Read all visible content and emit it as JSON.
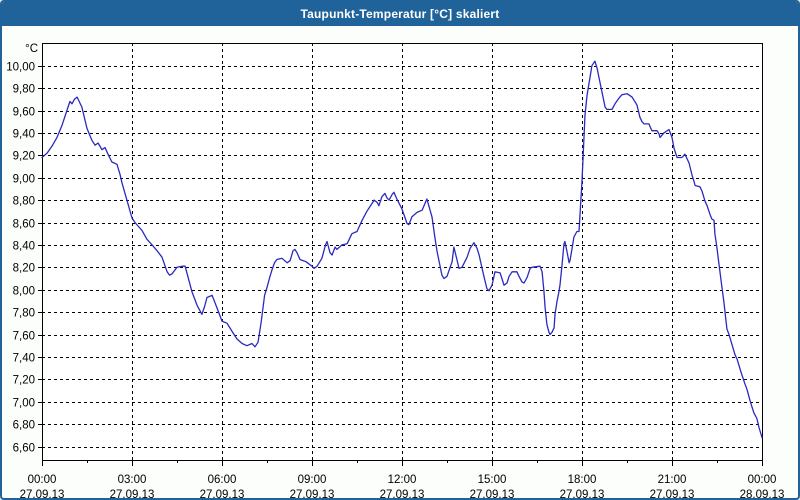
{
  "window": {
    "title": "Taupunkt-Temperatur [°C] skaliert"
  },
  "colors": {
    "titlebar_bg": "#20639b",
    "titlebar_text": "#ffffff",
    "frame_border": "#20639b",
    "page_bg": "#fcfefc",
    "plot_bg": "#fefffe",
    "grid": "#000000",
    "axis": "#000000",
    "tick_label": "#000000",
    "series_line": "#2a2ac0"
  },
  "chart_data": {
    "type": "line",
    "title": "Taupunkt-Temperatur [°C] skaliert",
    "unit_label": "°C",
    "grid": "dashed",
    "legend_position": "none",
    "y_axis": {
      "min": 6.49,
      "max": 10.2,
      "gridline_min": 6.6,
      "gridline_max": 10.0,
      "step": 0.2
    },
    "y_ticks": [
      {
        "value": 10.0,
        "label": "10,00"
      },
      {
        "value": 9.8,
        "label": "9,80"
      },
      {
        "value": 9.6,
        "label": "9,60"
      },
      {
        "value": 9.4,
        "label": "9,40"
      },
      {
        "value": 9.2,
        "label": "9,20"
      },
      {
        "value": 9.0,
        "label": "9,00"
      },
      {
        "value": 8.8,
        "label": "8,80"
      },
      {
        "value": 8.6,
        "label": "8,60"
      },
      {
        "value": 8.4,
        "label": "8,40"
      },
      {
        "value": 8.2,
        "label": "8,20"
      },
      {
        "value": 8.0,
        "label": "8,00"
      },
      {
        "value": 7.8,
        "label": "7,80"
      },
      {
        "value": 7.6,
        "label": "7,60"
      },
      {
        "value": 7.4,
        "label": "7,40"
      },
      {
        "value": 7.2,
        "label": "7,20"
      },
      {
        "value": 7.0,
        "label": "7,00"
      },
      {
        "value": 6.8,
        "label": "6,80"
      },
      {
        "value": 6.6,
        "label": "6,60"
      }
    ],
    "x_axis": {
      "min_hours": 0,
      "max_hours": 24,
      "major_step_hours": 3,
      "minor_step_hours": 1.5
    },
    "x_ticks": [
      {
        "hours": 0,
        "time": "00:00",
        "date": "27.09.13"
      },
      {
        "hours": 3,
        "time": "03:00",
        "date": "27.09.13"
      },
      {
        "hours": 6,
        "time": "06:00",
        "date": "27.09.13"
      },
      {
        "hours": 9,
        "time": "09:00",
        "date": "27.09.13"
      },
      {
        "hours": 12,
        "time": "12:00",
        "date": "27.09.13"
      },
      {
        "hours": 15,
        "time": "15:00",
        "date": "27.09.13"
      },
      {
        "hours": 18,
        "time": "18:00",
        "date": "27.09.13"
      },
      {
        "hours": 21,
        "time": "21:00",
        "date": "27.09.13"
      },
      {
        "hours": 24,
        "time": "00:00",
        "date": "28.09.13"
      }
    ],
    "series": [
      {
        "name": "Taupunkt-Temperatur",
        "color": "#2a2ac0",
        "points": [
          [
            0.0,
            9.18
          ],
          [
            0.17,
            9.22
          ],
          [
            0.33,
            9.28
          ],
          [
            0.5,
            9.36
          ],
          [
            0.67,
            9.47
          ],
          [
            0.83,
            9.6
          ],
          [
            0.93,
            9.68
          ],
          [
            1.0,
            9.66
          ],
          [
            1.08,
            9.7
          ],
          [
            1.17,
            9.72
          ],
          [
            1.33,
            9.63
          ],
          [
            1.5,
            9.44
          ],
          [
            1.67,
            9.33
          ],
          [
            1.77,
            9.29
          ],
          [
            1.87,
            9.31
          ],
          [
            2.0,
            9.25
          ],
          [
            2.1,
            9.27
          ],
          [
            2.2,
            9.21
          ],
          [
            2.33,
            9.14
          ],
          [
            2.5,
            9.12
          ],
          [
            2.6,
            9.03
          ],
          [
            2.67,
            8.95
          ],
          [
            2.83,
            8.8
          ],
          [
            3.0,
            8.64
          ],
          [
            3.1,
            8.6
          ],
          [
            3.23,
            8.56
          ],
          [
            3.33,
            8.53
          ],
          [
            3.5,
            8.45
          ],
          [
            3.67,
            8.4
          ],
          [
            3.83,
            8.35
          ],
          [
            4.0,
            8.29
          ],
          [
            4.17,
            8.16
          ],
          [
            4.25,
            8.13
          ],
          [
            4.33,
            8.14
          ],
          [
            4.5,
            8.2
          ],
          [
            4.67,
            8.21
          ],
          [
            4.77,
            8.21
          ],
          [
            4.9,
            8.08
          ],
          [
            5.0,
            7.98
          ],
          [
            5.17,
            7.86
          ],
          [
            5.33,
            7.78
          ],
          [
            5.42,
            7.85
          ],
          [
            5.5,
            7.93
          ],
          [
            5.67,
            7.95
          ],
          [
            5.83,
            7.84
          ],
          [
            6.0,
            7.72
          ],
          [
            6.17,
            7.7
          ],
          [
            6.33,
            7.63
          ],
          [
            6.5,
            7.56
          ],
          [
            6.67,
            7.52
          ],
          [
            6.83,
            7.5
          ],
          [
            7.0,
            7.52
          ],
          [
            7.1,
            7.49
          ],
          [
            7.2,
            7.53
          ],
          [
            7.3,
            7.7
          ],
          [
            7.42,
            7.95
          ],
          [
            7.5,
            8.02
          ],
          [
            7.6,
            8.12
          ],
          [
            7.67,
            8.18
          ],
          [
            7.75,
            8.24
          ],
          [
            7.83,
            8.27
          ],
          [
            8.0,
            8.28
          ],
          [
            8.17,
            8.24
          ],
          [
            8.27,
            8.26
          ],
          [
            8.37,
            8.35
          ],
          [
            8.43,
            8.36
          ],
          [
            8.5,
            8.33
          ],
          [
            8.6,
            8.27
          ],
          [
            8.7,
            8.26
          ],
          [
            8.8,
            8.25
          ],
          [
            9.0,
            8.21
          ],
          [
            9.07,
            8.19
          ],
          [
            9.17,
            8.21
          ],
          [
            9.33,
            8.28
          ],
          [
            9.45,
            8.4
          ],
          [
            9.5,
            8.43
          ],
          [
            9.6,
            8.33
          ],
          [
            9.67,
            8.31
          ],
          [
            9.77,
            8.38
          ],
          [
            9.83,
            8.36
          ],
          [
            10.0,
            8.4
          ],
          [
            10.17,
            8.41
          ],
          [
            10.33,
            8.5
          ],
          [
            10.5,
            8.52
          ],
          [
            10.67,
            8.62
          ],
          [
            10.83,
            8.7
          ],
          [
            11.0,
            8.77
          ],
          [
            11.07,
            8.8
          ],
          [
            11.17,
            8.78
          ],
          [
            11.23,
            8.75
          ],
          [
            11.33,
            8.83
          ],
          [
            11.43,
            8.86
          ],
          [
            11.5,
            8.82
          ],
          [
            11.57,
            8.8
          ],
          [
            11.67,
            8.85
          ],
          [
            11.73,
            8.87
          ],
          [
            11.83,
            8.81
          ],
          [
            12.0,
            8.72
          ],
          [
            12.17,
            8.59
          ],
          [
            12.23,
            8.58
          ],
          [
            12.33,
            8.65
          ],
          [
            12.5,
            8.69
          ],
          [
            12.67,
            8.71
          ],
          [
            12.83,
            8.81
          ],
          [
            13.0,
            8.65
          ],
          [
            13.1,
            8.46
          ],
          [
            13.17,
            8.34
          ],
          [
            13.33,
            8.13
          ],
          [
            13.4,
            8.1
          ],
          [
            13.5,
            8.12
          ],
          [
            13.67,
            8.25
          ],
          [
            13.73,
            8.38
          ],
          [
            13.83,
            8.27
          ],
          [
            13.9,
            8.19
          ],
          [
            14.0,
            8.2
          ],
          [
            14.17,
            8.29
          ],
          [
            14.27,
            8.37
          ],
          [
            14.4,
            8.42
          ],
          [
            14.5,
            8.37
          ],
          [
            14.57,
            8.31
          ],
          [
            14.67,
            8.19
          ],
          [
            14.73,
            8.12
          ],
          [
            14.83,
            8.01
          ],
          [
            14.9,
            7.99
          ],
          [
            15.0,
            8.04
          ],
          [
            15.1,
            8.16
          ],
          [
            15.27,
            8.15
          ],
          [
            15.33,
            8.1
          ],
          [
            15.4,
            8.04
          ],
          [
            15.5,
            8.06
          ],
          [
            15.57,
            8.12
          ],
          [
            15.67,
            8.16
          ],
          [
            15.83,
            8.16
          ],
          [
            15.9,
            8.12
          ],
          [
            16.0,
            8.07
          ],
          [
            16.07,
            8.06
          ],
          [
            16.17,
            8.11
          ],
          [
            16.27,
            8.19
          ],
          [
            16.33,
            8.2
          ],
          [
            16.6,
            8.21
          ],
          [
            16.67,
            8.16
          ],
          [
            16.73,
            7.99
          ],
          [
            16.77,
            7.84
          ],
          [
            16.83,
            7.69
          ],
          [
            16.9,
            7.62
          ],
          [
            16.93,
            7.6
          ],
          [
            17.0,
            7.62
          ],
          [
            17.07,
            7.66
          ],
          [
            17.1,
            7.78
          ],
          [
            17.17,
            7.9
          ],
          [
            17.23,
            7.98
          ],
          [
            17.27,
            8.05
          ],
          [
            17.33,
            8.21
          ],
          [
            17.4,
            8.41
          ],
          [
            17.43,
            8.43
          ],
          [
            17.5,
            8.34
          ],
          [
            17.57,
            8.24
          ],
          [
            17.6,
            8.26
          ],
          [
            17.67,
            8.37
          ],
          [
            17.73,
            8.47
          ],
          [
            17.83,
            8.52
          ],
          [
            17.9,
            8.52
          ],
          [
            18.0,
            8.97
          ],
          [
            18.1,
            9.56
          ],
          [
            18.17,
            9.74
          ],
          [
            18.27,
            9.9
          ],
          [
            18.33,
            10.0
          ],
          [
            18.43,
            10.04
          ],
          [
            18.5,
            9.98
          ],
          [
            18.6,
            9.85
          ],
          [
            18.67,
            9.76
          ],
          [
            18.77,
            9.63
          ],
          [
            18.83,
            9.61
          ],
          [
            19.0,
            9.61
          ],
          [
            19.1,
            9.66
          ],
          [
            19.23,
            9.71
          ],
          [
            19.33,
            9.74
          ],
          [
            19.5,
            9.75
          ],
          [
            19.67,
            9.72
          ],
          [
            19.83,
            9.65
          ],
          [
            19.93,
            9.54
          ],
          [
            20.0,
            9.5
          ],
          [
            20.07,
            9.48
          ],
          [
            20.23,
            9.48
          ],
          [
            20.33,
            9.42
          ],
          [
            20.5,
            9.42
          ],
          [
            20.57,
            9.39
          ],
          [
            20.6,
            9.36
          ],
          [
            20.73,
            9.4
          ],
          [
            20.9,
            9.43
          ],
          [
            21.0,
            9.36
          ],
          [
            21.07,
            9.26
          ],
          [
            21.17,
            9.18
          ],
          [
            21.33,
            9.18
          ],
          [
            21.43,
            9.21
          ],
          [
            21.57,
            9.13
          ],
          [
            21.67,
            9.02
          ],
          [
            21.73,
            8.97
          ],
          [
            21.77,
            8.93
          ],
          [
            21.93,
            8.92
          ],
          [
            22.0,
            8.88
          ],
          [
            22.1,
            8.79
          ],
          [
            22.17,
            8.75
          ],
          [
            22.27,
            8.67
          ],
          [
            22.33,
            8.63
          ],
          [
            22.4,
            8.62
          ],
          [
            22.43,
            8.5
          ],
          [
            22.5,
            8.37
          ],
          [
            22.57,
            8.22
          ],
          [
            22.67,
            8.01
          ],
          [
            22.73,
            7.89
          ],
          [
            22.83,
            7.65
          ],
          [
            22.9,
            7.6
          ],
          [
            23.0,
            7.51
          ],
          [
            23.1,
            7.42
          ],
          [
            23.17,
            7.38
          ],
          [
            23.27,
            7.29
          ],
          [
            23.33,
            7.24
          ],
          [
            23.43,
            7.16
          ],
          [
            23.5,
            7.11
          ],
          [
            23.6,
            7.01
          ],
          [
            23.67,
            6.95
          ],
          [
            23.73,
            6.9
          ],
          [
            23.83,
            6.85
          ],
          [
            23.9,
            6.77
          ],
          [
            24.0,
            6.68
          ]
        ]
      }
    ]
  }
}
